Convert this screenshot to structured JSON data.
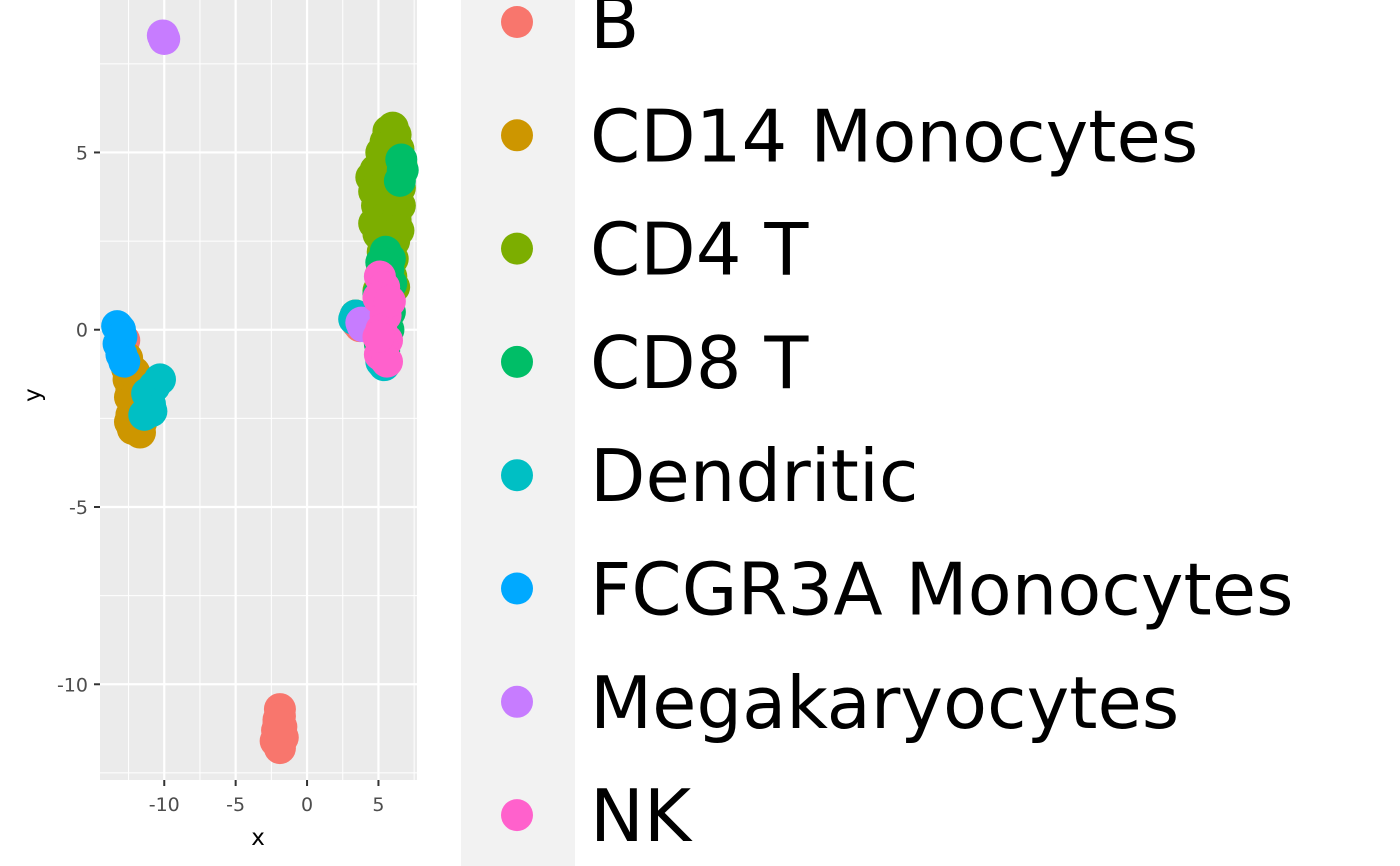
{
  "chart_data": {
    "type": "scatter",
    "title": "",
    "xlabel": "x",
    "ylabel": "y",
    "xlim": [
      -14.5,
      7.7
    ],
    "ylim": [
      -12.7,
      9.3
    ],
    "x_ticks": [
      -10,
      -5,
      0,
      5
    ],
    "x_tick_labels": [
      "-10",
      "-5",
      "0",
      "5"
    ],
    "y_ticks": [
      -10,
      -5,
      0,
      5
    ],
    "y_tick_labels": [
      "-10",
      "-5",
      "0",
      "5"
    ],
    "grid": true,
    "legend_position": "right",
    "panel_background": "#ebebeb",
    "grid_color": "#ffffff",
    "series": [
      {
        "name": "B",
        "color": "#F8766D",
        "points": [
          [
            -1.9,
            -10.7
          ],
          [
            -1.9,
            -10.9
          ],
          [
            -2.0,
            -11.1
          ],
          [
            -2.1,
            -11.3
          ],
          [
            -1.8,
            -11.4
          ],
          [
            -2.2,
            -11.6
          ],
          [
            -1.9,
            -11.8
          ],
          [
            -1.7,
            -11.5
          ],
          [
            -2.0,
            -11.0
          ],
          [
            -1.8,
            -11.2
          ],
          [
            -12.9,
            -0.4
          ],
          [
            -13.0,
            -0.5
          ],
          [
            -12.8,
            -0.3
          ],
          [
            3.5,
            0.2
          ],
          [
            3.7,
            0.1
          ]
        ]
      },
      {
        "name": "CD14 Monocytes",
        "color": "#CD9600",
        "points": [
          [
            -12.6,
            -1.1
          ],
          [
            -12.5,
            -1.4
          ],
          [
            -12.3,
            -1.7
          ],
          [
            -12.2,
            -2.0
          ],
          [
            -12.1,
            -2.2
          ],
          [
            -11.9,
            -2.5
          ],
          [
            -12.0,
            -2.7
          ],
          [
            -11.7,
            -2.9
          ],
          [
            -12.3,
            -2.4
          ],
          [
            -11.8,
            -2.3
          ],
          [
            -12.4,
            -1.9
          ],
          [
            -11.6,
            -2.6
          ],
          [
            -12.0,
            -1.5
          ],
          [
            -12.2,
            -2.8
          ],
          [
            -11.5,
            -2.1
          ],
          [
            -11.9,
            -1.8
          ],
          [
            -12.6,
            -0.8
          ],
          [
            -12.1,
            -1.2
          ],
          [
            -11.7,
            -2.0
          ],
          [
            -12.4,
            -2.6
          ],
          [
            3.4,
            0.4
          ]
        ]
      },
      {
        "name": "CD4 T",
        "color": "#7CAE00",
        "points": [
          [
            5.7,
            5.6
          ],
          [
            6.0,
            5.7
          ],
          [
            6.2,
            5.5
          ],
          [
            5.5,
            5.3
          ],
          [
            5.8,
            5.2
          ],
          [
            6.4,
            5.1
          ],
          [
            5.2,
            5.0
          ],
          [
            5.6,
            4.9
          ],
          [
            6.1,
            4.8
          ],
          [
            5.4,
            4.6
          ],
          [
            5.9,
            4.6
          ],
          [
            6.6,
            4.7
          ],
          [
            4.8,
            4.5
          ],
          [
            5.2,
            4.4
          ],
          [
            5.7,
            4.3
          ],
          [
            6.3,
            4.3
          ],
          [
            4.5,
            4.3
          ],
          [
            5.0,
            4.1
          ],
          [
            5.5,
            4.1
          ],
          [
            6.0,
            4.0
          ],
          [
            6.5,
            4.0
          ],
          [
            4.7,
            3.9
          ],
          [
            5.2,
            3.8
          ],
          [
            5.8,
            3.7
          ],
          [
            6.3,
            3.7
          ],
          [
            4.9,
            3.5
          ],
          [
            5.4,
            3.5
          ],
          [
            6.0,
            3.4
          ],
          [
            6.5,
            3.5
          ],
          [
            5.1,
            3.2
          ],
          [
            5.6,
            3.2
          ],
          [
            6.2,
            3.1
          ],
          [
            4.7,
            3.0
          ],
          [
            5.3,
            2.9
          ],
          [
            5.9,
            2.9
          ],
          [
            6.4,
            2.8
          ],
          [
            5.0,
            2.7
          ],
          [
            5.5,
            2.6
          ],
          [
            6.1,
            2.5
          ],
          [
            5.8,
            2.3
          ],
          [
            5.3,
            2.2
          ],
          [
            6.0,
            2.0
          ],
          [
            5.6,
            1.8
          ],
          [
            5.2,
            1.6
          ],
          [
            5.9,
            1.5
          ],
          [
            5.4,
            1.3
          ],
          [
            6.1,
            1.2
          ],
          [
            5.0,
            1.1
          ]
        ]
      },
      {
        "name": "CD8 T",
        "color": "#00BE67",
        "points": [
          [
            5.8,
            2.0
          ],
          [
            5.5,
            2.2
          ],
          [
            5.2,
            1.9
          ],
          [
            5.7,
            1.7
          ],
          [
            5.3,
            1.4
          ],
          [
            5.9,
            1.3
          ],
          [
            5.0,
            1.0
          ],
          [
            5.6,
            0.9
          ],
          [
            5.2,
            0.7
          ],
          [
            5.8,
            0.5
          ],
          [
            5.0,
            0.3
          ],
          [
            5.5,
            0.2
          ],
          [
            5.3,
            -0.1
          ],
          [
            5.7,
            0.0
          ],
          [
            5.1,
            -0.4
          ],
          [
            5.4,
            -0.6
          ],
          [
            5.2,
            -0.8
          ],
          [
            6.6,
            4.8
          ],
          [
            6.7,
            4.5
          ],
          [
            6.5,
            4.2
          ]
        ]
      },
      {
        "name": "Dendritic",
        "color": "#00BFC4",
        "points": [
          [
            -10.3,
            -1.4
          ],
          [
            -10.7,
            -1.6
          ],
          [
            -11.2,
            -1.8
          ],
          [
            -11.0,
            -2.1
          ],
          [
            -10.9,
            -2.3
          ],
          [
            -11.4,
            -2.4
          ],
          [
            3.3,
            0.3
          ],
          [
            3.4,
            0.4
          ],
          [
            5.2,
            -0.9
          ],
          [
            5.4,
            -1.0
          ]
        ]
      },
      {
        "name": "FCGR3A Monocytes",
        "color": "#00A9FF",
        "points": [
          [
            -13.3,
            0.1
          ],
          [
            -13.1,
            0.0
          ],
          [
            -13.0,
            -0.2
          ],
          [
            -13.2,
            -0.4
          ],
          [
            -13.0,
            -0.7
          ],
          [
            -12.8,
            -0.9
          ]
        ]
      },
      {
        "name": "Megakaryocytes",
        "color": "#C77CFF",
        "points": [
          [
            -10.1,
            8.3
          ],
          [
            -10.0,
            8.2
          ],
          [
            3.8,
            0.2
          ],
          [
            3.9,
            0.1
          ]
        ]
      },
      {
        "name": "NK",
        "color": "#FF61CC",
        "points": [
          [
            5.1,
            1.5
          ],
          [
            5.4,
            1.2
          ],
          [
            5.0,
            0.9
          ],
          [
            5.5,
            0.4
          ],
          [
            5.2,
            0.0
          ],
          [
            5.6,
            -0.3
          ],
          [
            5.3,
            -0.5
          ],
          [
            5.1,
            -0.7
          ],
          [
            5.4,
            -0.8
          ],
          [
            5.6,
            -0.9
          ],
          [
            5.8,
            0.8
          ],
          [
            5.0,
            -0.2
          ]
        ]
      }
    ]
  }
}
